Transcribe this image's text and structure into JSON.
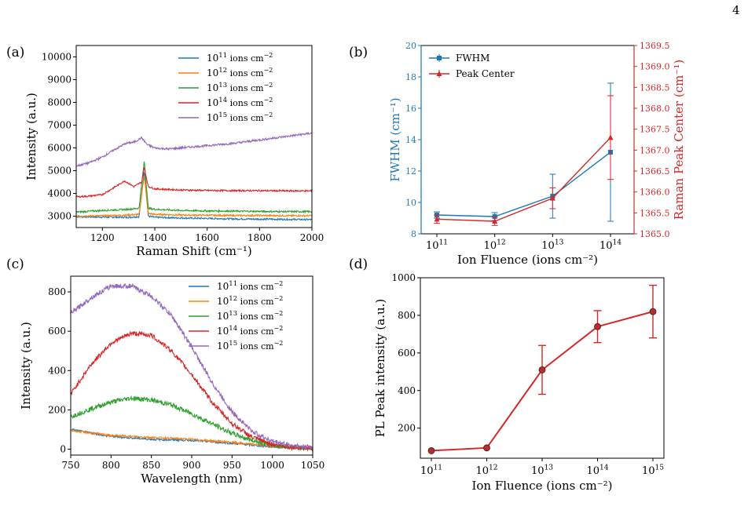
{
  "page_number": "4",
  "colors": {
    "blue": "#1f77b4",
    "orange": "#ff7f0e",
    "green": "#2ca02c",
    "red": "#d62728",
    "purple": "#9467bd",
    "fwhm_axis": "#1f77b4",
    "peak_axis": "#d62728",
    "pl_line": "#d62728"
  },
  "chart_data": [
    {
      "panel_label": "(a)",
      "type": "line",
      "xlabel": "Raman Shift (cm⁻¹)",
      "ylabel": "Intensity (a.u.)",
      "xlim": [
        1100,
        2000
      ],
      "ylim": [
        2500,
        10500
      ],
      "xticks": [
        1200,
        1400,
        1600,
        1800,
        2000
      ],
      "yticks": [
        3000,
        4000,
        5000,
        6000,
        7000,
        8000,
        9000,
        10000
      ],
      "legend_position": "top-right",
      "series": [
        {
          "name_base": "10",
          "name_exp": "11",
          "name_unit": " ions cm",
          "name_unit_exp": "−2",
          "color": "blue",
          "x": [
            1100,
            1200,
            1300,
            1340,
            1360,
            1375,
            1400,
            1500,
            1600,
            1700,
            1800,
            1900,
            2000
          ],
          "y": [
            2980,
            2960,
            2950,
            2980,
            5000,
            3000,
            2950,
            2920,
            2900,
            2880,
            2870,
            2860,
            2850
          ]
        },
        {
          "name_base": "10",
          "name_exp": "12",
          "name_unit": " ions cm",
          "name_unit_exp": "−2",
          "color": "orange",
          "x": [
            1100,
            1200,
            1300,
            1340,
            1360,
            1375,
            1400,
            1500,
            1600,
            1700,
            1800,
            1900,
            2000
          ],
          "y": [
            3000,
            3020,
            3050,
            3080,
            4800,
            3120,
            3080,
            3050,
            3040,
            3030,
            3030,
            3020,
            3020
          ]
        },
        {
          "name_base": "10",
          "name_exp": "13",
          "name_unit": " ions cm",
          "name_unit_exp": "−2",
          "color": "green",
          "x": [
            1100,
            1200,
            1300,
            1340,
            1360,
            1375,
            1400,
            1500,
            1600,
            1700,
            1800,
            1900,
            2000
          ],
          "y": [
            3180,
            3250,
            3300,
            3350,
            5450,
            3350,
            3300,
            3250,
            3230,
            3220,
            3210,
            3200,
            3200
          ]
        },
        {
          "name_base": "10",
          "name_exp": "14",
          "name_unit": " ions cm",
          "name_unit_exp": "−2",
          "color": "red",
          "x": [
            1100,
            1150,
            1200,
            1250,
            1285,
            1320,
            1350,
            1360,
            1375,
            1400,
            1500,
            1600,
            1700,
            1800,
            1900,
            2000
          ],
          "y": [
            3850,
            3880,
            3950,
            4300,
            4550,
            4300,
            4500,
            5150,
            4300,
            4200,
            4150,
            4130,
            4120,
            4120,
            4110,
            4110
          ]
        },
        {
          "name_base": "10",
          "name_exp": "15",
          "name_unit": " ions cm",
          "name_unit_exp": "−2",
          "color": "purple",
          "x": [
            1100,
            1150,
            1200,
            1250,
            1290,
            1320,
            1350,
            1370,
            1400,
            1450,
            1500,
            1600,
            1700,
            1800,
            1900,
            2000
          ],
          "y": [
            5200,
            5350,
            5600,
            5950,
            6200,
            6250,
            6450,
            6150,
            6000,
            5950,
            6000,
            6100,
            6200,
            6350,
            6500,
            6650
          ]
        }
      ]
    },
    {
      "panel_label": "(b)",
      "type": "line",
      "xlabel": "Ion Fluence (ions cm⁻²)",
      "ylabel_left": "FWHM (cm⁻¹)",
      "ylabel_right": "Raman Peak Center (cm⁻¹)",
      "x_tick_base": "10",
      "x_tick_exps": [
        "11",
        "12",
        "13",
        "14"
      ],
      "ylim_left": [
        8,
        20
      ],
      "yticks_left": [
        8,
        10,
        12,
        14,
        16,
        18,
        20
      ],
      "ylim_right": [
        1365.0,
        1369.5
      ],
      "yticks_right": [
        "1365.0",
        "1365.5",
        "1366.0",
        "1366.5",
        "1367.0",
        "1367.5",
        "1368.0",
        "1368.5",
        "1369.0",
        "1369.5"
      ],
      "legend_position": "top-left",
      "series": [
        {
          "name": "FWHM",
          "axis": "left",
          "color": "blue",
          "marker": "square",
          "x_exp": [
            11,
            12,
            13,
            14
          ],
          "values": [
            9.2,
            9.1,
            10.4,
            13.2
          ],
          "err": [
            0.2,
            0.25,
            1.4,
            4.4
          ]
        },
        {
          "name": "Peak Center",
          "axis": "right",
          "color": "red",
          "marker": "triangle",
          "x_exp": [
            11,
            12,
            13,
            14
          ],
          "values": [
            1365.35,
            1365.3,
            1365.85,
            1367.3
          ],
          "err": [
            0.1,
            0.1,
            0.25,
            1.0
          ]
        }
      ]
    },
    {
      "panel_label": "(c)",
      "type": "line",
      "xlabel": "Wavelength (nm)",
      "ylabel": "Intensity (a.u.)",
      "xlim": [
        750,
        1050
      ],
      "ylim": [
        -30,
        880
      ],
      "xticks": [
        750,
        800,
        850,
        900,
        950,
        1000,
        1050
      ],
      "yticks": [
        0,
        200,
        400,
        600,
        800
      ],
      "legend_position": "top-right",
      "series": [
        {
          "name_base": "10",
          "name_exp": "11",
          "name_unit": " ions cm",
          "name_unit_exp": "−2",
          "color": "blue",
          "x": [
            750,
            800,
            850,
            900,
            950,
            1000,
            1050
          ],
          "y": [
            100,
            65,
            50,
            45,
            30,
            12,
            5
          ]
        },
        {
          "name_base": "10",
          "name_exp": "12",
          "name_unit": " ions cm",
          "name_unit_exp": "−2",
          "color": "orange",
          "x": [
            750,
            800,
            850,
            900,
            950,
            1000,
            1050
          ],
          "y": [
            95,
            70,
            60,
            50,
            35,
            15,
            5
          ]
        },
        {
          "name_base": "10",
          "name_exp": "13",
          "name_unit": " ions cm",
          "name_unit_exp": "−2",
          "color": "green",
          "x": [
            750,
            775,
            800,
            825,
            850,
            875,
            900,
            925,
            950,
            975,
            1000,
            1025,
            1050
          ],
          "y": [
            165,
            205,
            240,
            260,
            250,
            225,
            180,
            130,
            80,
            45,
            20,
            10,
            5
          ]
        },
        {
          "name_base": "10",
          "name_exp": "14",
          "name_unit": " ions cm",
          "name_unit_exp": "−2",
          "color": "red",
          "x": [
            750,
            775,
            800,
            825,
            850,
            875,
            900,
            925,
            950,
            975,
            1000,
            1025,
            1050
          ],
          "y": [
            280,
            430,
            540,
            590,
            580,
            500,
            380,
            240,
            130,
            60,
            25,
            10,
            5
          ]
        },
        {
          "name_base": "10",
          "name_exp": "15",
          "name_unit": " ions cm",
          "name_unit_exp": "−2",
          "color": "purple",
          "x": [
            750,
            775,
            800,
            825,
            850,
            875,
            900,
            925,
            950,
            975,
            1000,
            1025,
            1050
          ],
          "y": [
            690,
            770,
            830,
            830,
            780,
            680,
            520,
            340,
            190,
            90,
            40,
            18,
            8
          ]
        }
      ]
    },
    {
      "panel_label": "(d)",
      "type": "line",
      "xlabel": "Ion Fluence (ions cm⁻²)",
      "ylabel": "PL Peak intensity (a.u.)",
      "x_tick_base": "10",
      "x_tick_exps": [
        "11",
        "12",
        "13",
        "14",
        "15"
      ],
      "ylim": [
        40,
        1000
      ],
      "yticks": [
        200,
        400,
        600,
        800,
        1000
      ],
      "series": [
        {
          "color": "pl_line",
          "marker": "circle",
          "x_exp": [
            11,
            12,
            13,
            14,
            15
          ],
          "values": [
            80,
            95,
            510,
            740,
            820
          ],
          "err": [
            0,
            0,
            130,
            85,
            140
          ]
        }
      ]
    }
  ]
}
